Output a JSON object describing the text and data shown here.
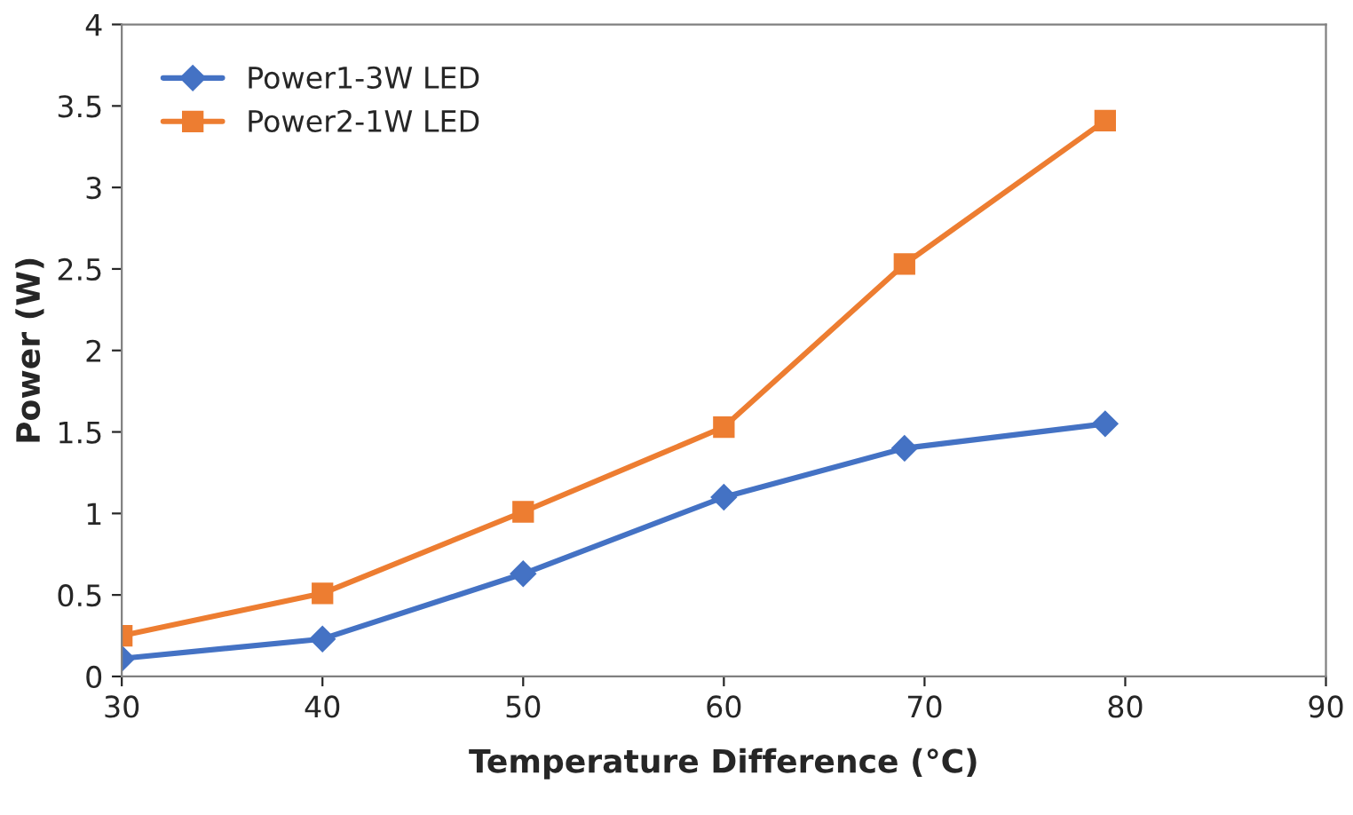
{
  "chart_data": {
    "type": "line",
    "xlabel": "Temperature Difference (°C)",
    "ylabel": "Power (W)",
    "x": [
      30,
      40,
      50,
      60,
      69,
      79
    ],
    "series": [
      {
        "name": "Power1-3W LED",
        "color": "#4472c4",
        "marker": "diamond",
        "values": [
          0.11,
          0.23,
          0.63,
          1.1,
          1.4,
          1.55
        ]
      },
      {
        "name": "Power2-1W LED",
        "color": "#ed7d31",
        "marker": "square",
        "values": [
          0.25,
          0.51,
          1.01,
          1.53,
          2.53,
          3.41
        ]
      }
    ],
    "xlim": [
      30,
      90
    ],
    "xticks": [
      30,
      40,
      50,
      60,
      70,
      80,
      90
    ],
    "ylim": [
      0,
      4
    ],
    "yticks": [
      0,
      0.5,
      1,
      1.5,
      2,
      2.5,
      3,
      3.5,
      4
    ],
    "grid": false,
    "legend": "top left",
    "line_style": "solid"
  }
}
